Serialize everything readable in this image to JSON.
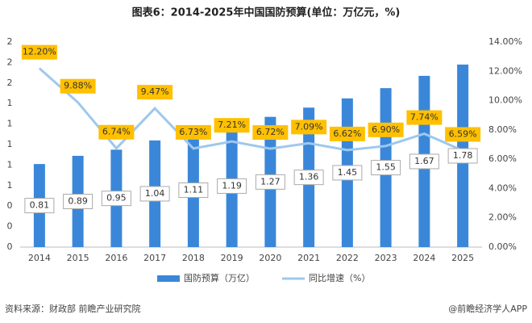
{
  "chart_data": {
    "type": "bar-line",
    "title": "图表6：2014-2025年中国国防预算(单位：万亿元，%)",
    "categories": [
      "2014",
      "2015",
      "2016",
      "2017",
      "2018",
      "2019",
      "2020",
      "2021",
      "2022",
      "2023",
      "2024",
      "2025"
    ],
    "series": [
      {
        "name": "国防预算（万亿）",
        "type": "bar",
        "color": "#3a87d9",
        "values": [
          0.81,
          0.89,
          0.95,
          1.04,
          1.11,
          1.19,
          1.27,
          1.36,
          1.45,
          1.55,
          1.67,
          1.78
        ],
        "value_labels": [
          "0.81",
          "0.89",
          "0.95",
          "1.04",
          "1.11",
          "1.19",
          "1.27",
          "1.36",
          "1.45",
          "1.55",
          "1.67",
          "1.78"
        ]
      },
      {
        "name": "同比增速（%）",
        "type": "line",
        "axis": "y2",
        "color": "#9ec8ee",
        "values": [
          12.2,
          9.88,
          6.74,
          9.47,
          6.73,
          7.21,
          6.72,
          7.09,
          6.62,
          6.9,
          7.74,
          6.59
        ],
        "value_labels": [
          "12.20%",
          "9.88%",
          "6.74%",
          "9.47%",
          "6.73%",
          "7.21%",
          "6.72%",
          "7.09%",
          "6.62%",
          "6.90%",
          "7.74%",
          "6.59%"
        ]
      }
    ],
    "ylim": [
      0,
      2
    ],
    "yticks": [
      0,
      {
        "value": 0.2,
        "label": "0"
      },
      {
        "value": 0.4,
        "label": "0"
      },
      {
        "value": 0.6,
        "label": "1"
      },
      {
        "value": 0.8,
        "label": "1"
      },
      1,
      {
        "value": 1.2,
        "label": "1"
      },
      {
        "value": 1.4,
        "label": "1"
      },
      {
        "value": 1.6,
        "label": "2"
      },
      {
        "value": 1.8,
        "label": "2"
      },
      2
    ],
    "y2lim": [
      0,
      14
    ],
    "y2ticks": [
      {
        "value": 0,
        "label": "0.00%"
      },
      {
        "value": 2,
        "label": "2.00%"
      },
      {
        "value": 4,
        "label": "4.00%"
      },
      {
        "value": 6,
        "label": "6.00%"
      },
      {
        "value": 8,
        "label": "8.00%"
      },
      {
        "value": 10,
        "label": "10.00%"
      },
      {
        "value": 12,
        "label": "12.00%"
      },
      {
        "value": 14,
        "label": "14.00%"
      }
    ],
    "source": "资料来源：财政部 前瞻产业研究院",
    "credit": "@前瞻经济学人APP"
  }
}
